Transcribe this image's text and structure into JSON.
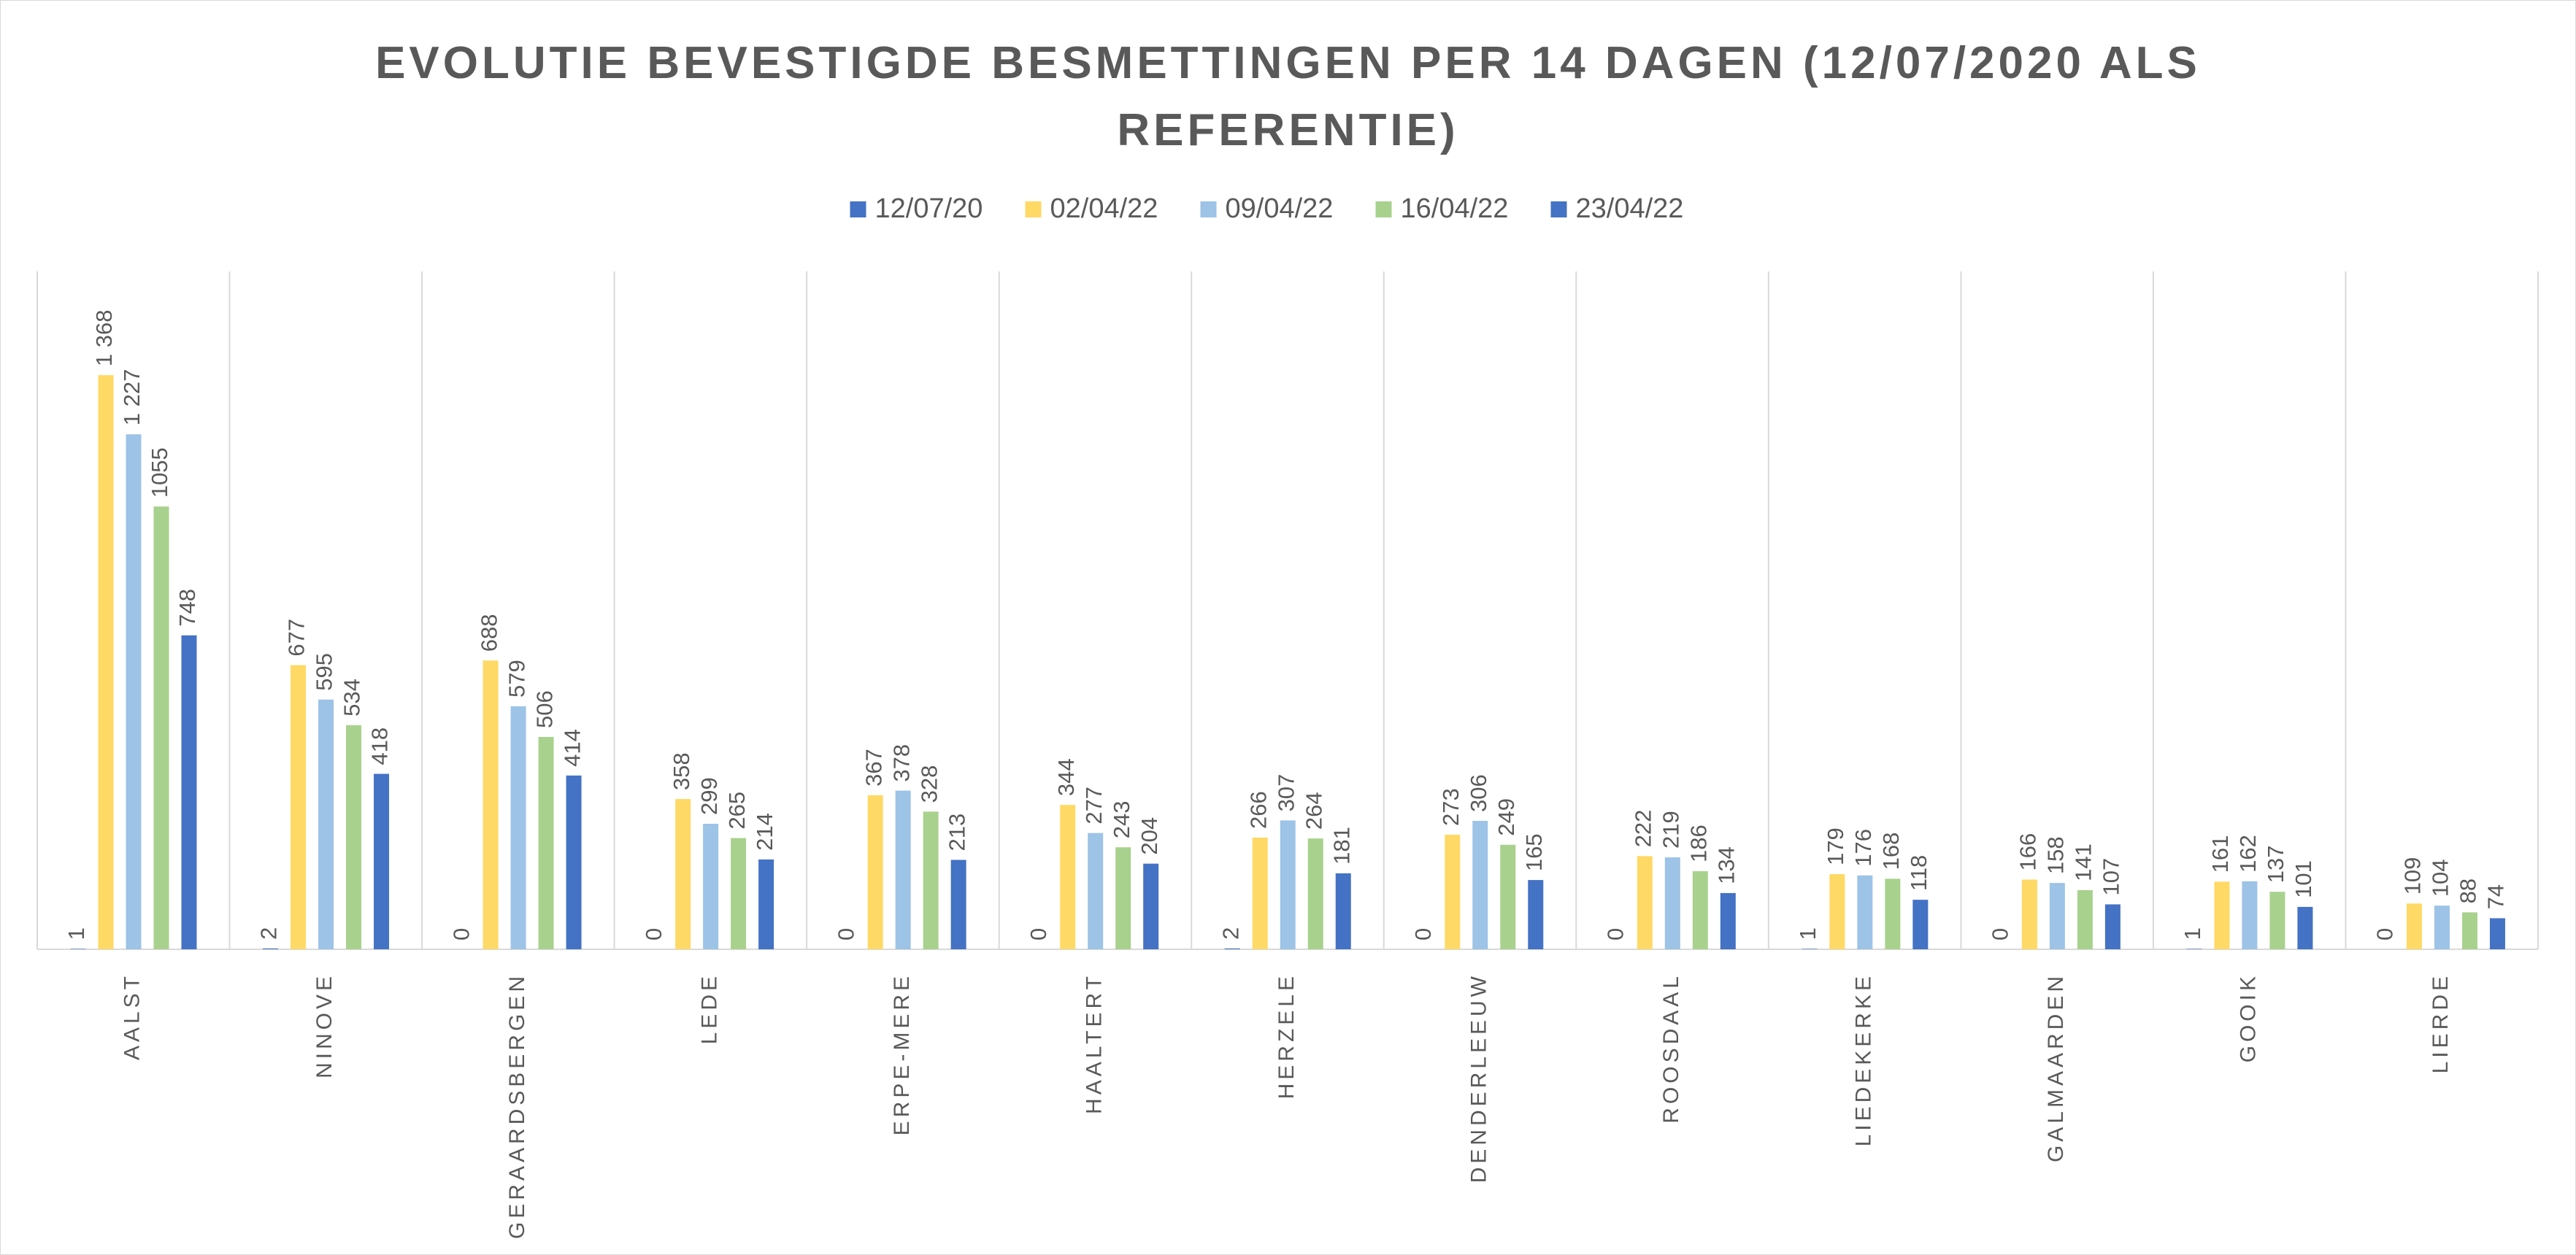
{
  "chart_data": {
    "type": "bar",
    "title": "EVOLUTIE BEVESTIGDE BESMETTINGEN PER 14 DAGEN (12/07/2020 ALS REFERENTIE)",
    "categories": [
      "AALST",
      "NINOVE",
      "GERAARDSBERGEN",
      "LEDE",
      "ERPE-MERE",
      "HAALTERT",
      "HERZELE",
      "DENDERLEEUW",
      "ROOSDAAL",
      "LIEDEKERKE",
      "GALMAARDEN",
      "GOOIK",
      "LIERDE"
    ],
    "series": [
      {
        "name": "12/07/20",
        "color": "#4472c4",
        "values": [
          1,
          2,
          0,
          0,
          0,
          0,
          2,
          0,
          0,
          1,
          0,
          1,
          0
        ]
      },
      {
        "name": "02/04/22",
        "color": "#ffd966",
        "values": [
          1368,
          677,
          688,
          358,
          367,
          344,
          266,
          273,
          222,
          179,
          166,
          161,
          109
        ],
        "value_labels": [
          "1 368",
          "677",
          "688",
          "358",
          "367",
          "344",
          "266",
          "273",
          "222",
          "179",
          "166",
          "161",
          "109"
        ]
      },
      {
        "name": "09/04/22",
        "color": "#9dc3e6",
        "values": [
          1227,
          595,
          579,
          299,
          378,
          277,
          307,
          306,
          219,
          176,
          158,
          162,
          104
        ],
        "value_labels": [
          "1 227",
          "595",
          "579",
          "299",
          "378",
          "277",
          "307",
          "306",
          "219",
          "176",
          "158",
          "162",
          "104"
        ]
      },
      {
        "name": "16/04/22",
        "color": "#a9d18e",
        "values": [
          1055,
          534,
          506,
          265,
          328,
          243,
          264,
          249,
          186,
          168,
          141,
          137,
          88
        ]
      },
      {
        "name": "23/04/22",
        "color": "#4472c4",
        "values": [
          748,
          418,
          414,
          214,
          213,
          204,
          181,
          165,
          134,
          118,
          107,
          101,
          74
        ]
      }
    ],
    "legend": "top"
  }
}
